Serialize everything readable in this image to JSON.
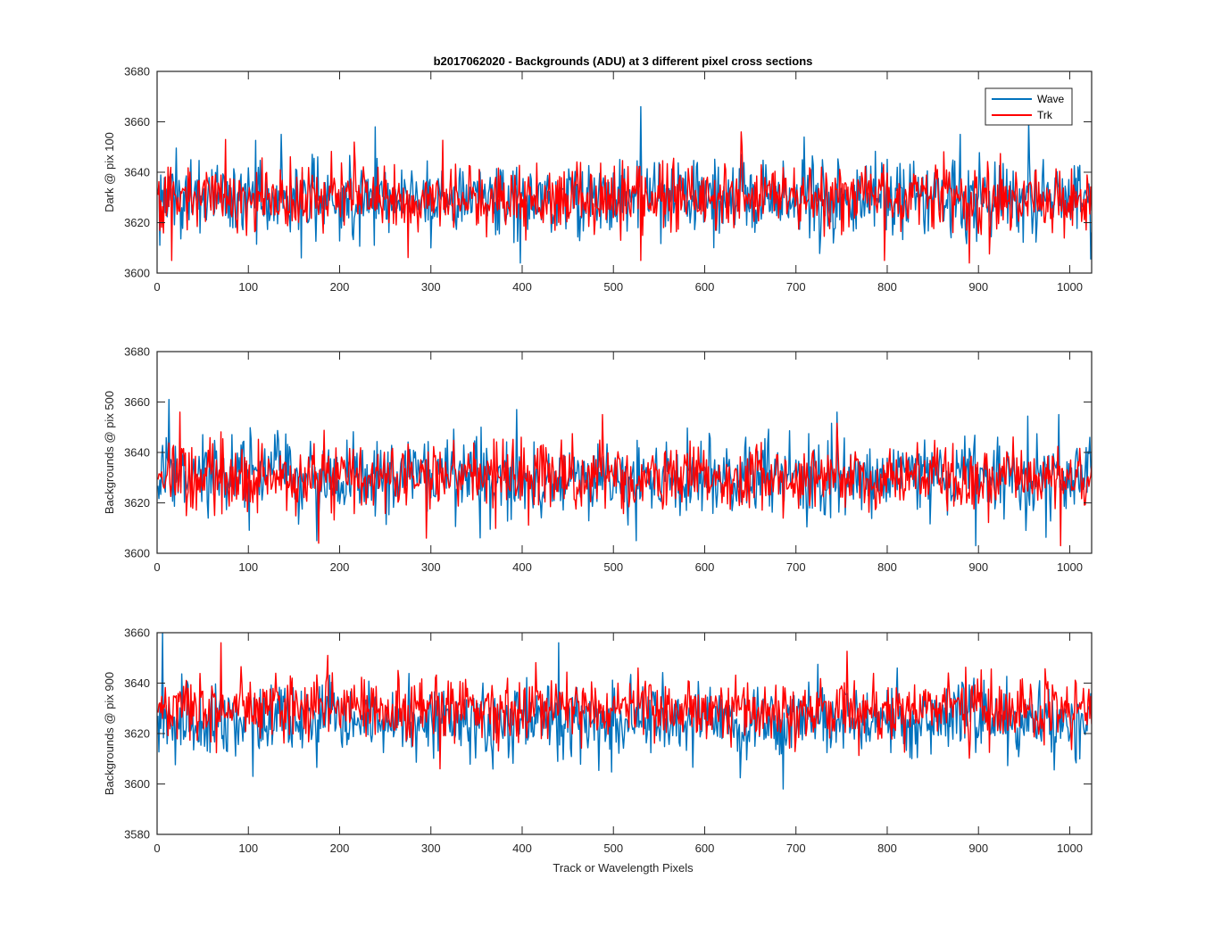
{
  "figure": {
    "title": "b2017062020 - Backgrounds (ADU) at 3 different pixel cross sections",
    "xlabel": "Track or Wavelength Pixels"
  },
  "legend": {
    "placement": "top-right of first panel",
    "entries": [
      {
        "name": "Wave",
        "color": "#0072BD"
      },
      {
        "name": "Trk",
        "color": "#FF0000"
      }
    ]
  },
  "chart_data": [
    {
      "type": "line",
      "ylabel": "Dark @ pix 100",
      "xlim": [
        0,
        1024
      ],
      "ylim": [
        3600,
        3680
      ],
      "xticks": [
        0,
        100,
        200,
        300,
        400,
        500,
        600,
        700,
        800,
        900,
        1000
      ],
      "yticks": [
        3600,
        3620,
        3640,
        3660,
        3680
      ],
      "grid": false,
      "series": [
        {
          "name": "Wave",
          "color": "#0072BD",
          "mean": 3630,
          "sigma": 7.5,
          "x_start": 1,
          "x_end": 1024,
          "peaks": [
            [
              136,
              3655
            ],
            [
              239,
              3658
            ],
            [
              530,
              3666
            ],
            [
              955,
              3660
            ],
            [
              880,
              3655
            ]
          ],
          "dips": [
            [
              158,
              3606
            ],
            [
              398,
              3604
            ],
            [
              300,
              3610
            ]
          ]
        },
        {
          "name": "Trk",
          "color": "#FF0000",
          "mean": 3630,
          "sigma": 6.5,
          "x_start": 1,
          "x_end": 1024,
          "peaks": [
            [
              75,
              3653
            ],
            [
              640,
              3656
            ]
          ],
          "dips": [
            [
              16,
              3605
            ],
            [
              530,
              3605
            ],
            [
              797,
              3605
            ],
            [
              890,
              3604
            ]
          ]
        }
      ]
    },
    {
      "type": "line",
      "ylabel": "Backgrounds @ pix 500",
      "xlim": [
        0,
        1024
      ],
      "ylim": [
        3600,
        3680
      ],
      "xticks": [
        0,
        100,
        200,
        300,
        400,
        500,
        600,
        700,
        800,
        900,
        1000
      ],
      "yticks": [
        3600,
        3620,
        3640,
        3660,
        3680
      ],
      "grid": false,
      "series": [
        {
          "name": "Wave",
          "color": "#0072BD",
          "mean": 3630,
          "sigma": 7.5,
          "x_start": 1,
          "x_end": 1024,
          "peaks": [
            [
              13,
              3661
            ],
            [
              394,
              3657
            ],
            [
              745,
              3656
            ],
            [
              988,
              3655
            ]
          ],
          "dips": [
            [
              175,
              3605
            ],
            [
              525,
              3605
            ],
            [
              897,
              3603
            ]
          ]
        },
        {
          "name": "Trk",
          "color": "#FF0000",
          "mean": 3630,
          "sigma": 6.5,
          "x_start": 1,
          "x_end": 1024,
          "peaks": [
            [
              25,
              3656
            ],
            [
              488,
              3655
            ]
          ],
          "dips": [
            [
              177,
              3604
            ],
            [
              295,
              3606
            ],
            [
              990,
              3603
            ]
          ]
        }
      ]
    },
    {
      "type": "line",
      "ylabel": "Backgrounds @ pix 900",
      "xlim": [
        0,
        1024
      ],
      "ylim": [
        3580,
        3660
      ],
      "xticks": [
        0,
        100,
        200,
        300,
        400,
        500,
        600,
        700,
        800,
        900,
        1000
      ],
      "yticks": [
        3580,
        3600,
        3620,
        3640,
        3660
      ],
      "grid": false,
      "series": [
        {
          "name": "Wave",
          "color": "#0072BD",
          "mean": 3625,
          "sigma": 7.5,
          "x_start": 1,
          "x_end": 1024,
          "peaks": [
            [
              6,
              3660
            ],
            [
              440,
              3656
            ]
          ],
          "dips": [
            [
              105,
              3603
            ],
            [
              686,
              3598
            ]
          ]
        },
        {
          "name": "Trk",
          "color": "#FF0000",
          "mean": 3630,
          "sigma": 6.5,
          "x_start": 1,
          "x_end": 1024,
          "peaks": [
            [
              70,
              3656
            ],
            [
              187,
              3651
            ]
          ],
          "dips": [
            [
              310,
              3606
            ]
          ]
        }
      ]
    }
  ]
}
